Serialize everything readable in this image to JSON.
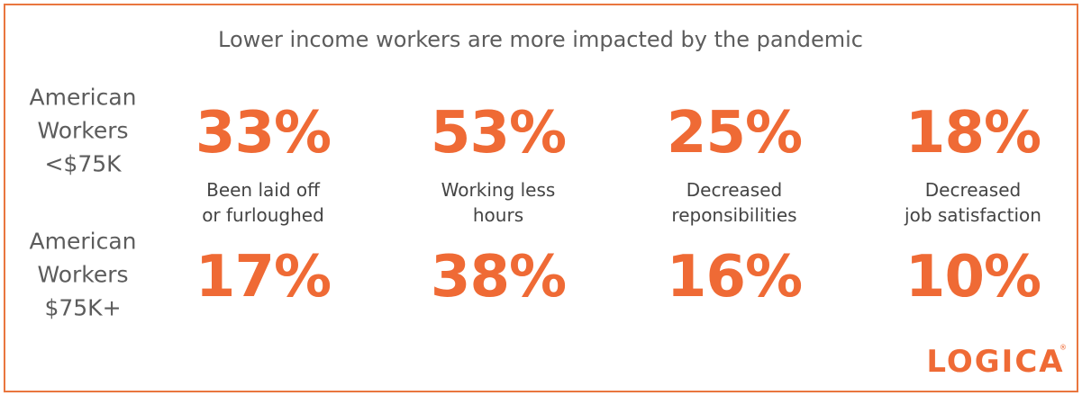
{
  "title": "Lower income workers are more impacted by the pandemic",
  "groups": [
    {
      "label_lines": [
        "American",
        "Workers",
        "<$75K"
      ],
      "stats": [
        "33%",
        "53%",
        "25%",
        "18%"
      ]
    },
    {
      "label_lines": [
        "American",
        "Workers",
        "$75K+"
      ],
      "stats": [
        "17%",
        "38%",
        "16%",
        "10%"
      ]
    }
  ],
  "descriptions": [
    [
      "Been laid off",
      "or furloughed"
    ],
    [
      "Working less",
      "hours"
    ],
    [
      "Decreased",
      "reponsibilities"
    ],
    [
      "Decreased",
      "job satisfaction"
    ]
  ],
  "logo": {
    "text": "LOGICA",
    "mark": "®"
  }
}
